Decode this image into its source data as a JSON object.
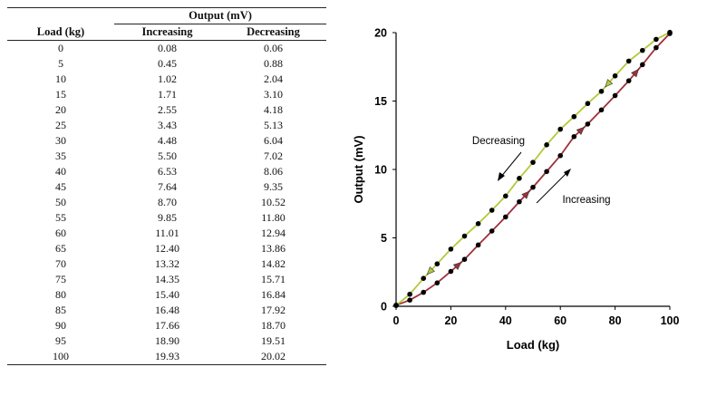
{
  "table": {
    "group_header": "Output (mV)",
    "headers": [
      "Load (kg)",
      "Increasing",
      "Decreasing"
    ],
    "rows": [
      [
        "0",
        "0.08",
        "0.06"
      ],
      [
        "5",
        "0.45",
        "0.88"
      ],
      [
        "10",
        "1.02",
        "2.04"
      ],
      [
        "15",
        "1.71",
        "3.10"
      ],
      [
        "20",
        "2.55",
        "4.18"
      ],
      [
        "25",
        "3.43",
        "5.13"
      ],
      [
        "30",
        "4.48",
        "6.04"
      ],
      [
        "35",
        "5.50",
        "7.02"
      ],
      [
        "40",
        "6.53",
        "8.06"
      ],
      [
        "45",
        "7.64",
        "9.35"
      ],
      [
        "50",
        "8.70",
        "10.52"
      ],
      [
        "55",
        "9.85",
        "11.80"
      ],
      [
        "60",
        "11.01",
        "12.94"
      ],
      [
        "65",
        "12.40",
        "13.86"
      ],
      [
        "70",
        "13.32",
        "14.82"
      ],
      [
        "75",
        "14.35",
        "15.71"
      ],
      [
        "80",
        "15.40",
        "16.84"
      ],
      [
        "85",
        "16.48",
        "17.92"
      ],
      [
        "90",
        "17.66",
        "18.70"
      ],
      [
        "95",
        "18.90",
        "19.51"
      ],
      [
        "100",
        "19.93",
        "20.02"
      ]
    ]
  },
  "chart_data": {
    "type": "line",
    "xlabel": "Load (kg)",
    "ylabel": "Output (mV)",
    "xlim": [
      0,
      100
    ],
    "ylim": [
      0,
      20
    ],
    "xticks": [
      0,
      20,
      40,
      60,
      80,
      100
    ],
    "yticks": [
      0,
      5,
      10,
      15,
      20
    ],
    "grid": false,
    "x": [
      0,
      5,
      10,
      15,
      20,
      25,
      30,
      35,
      40,
      45,
      50,
      55,
      60,
      65,
      70,
      75,
      80,
      85,
      90,
      95,
      100
    ],
    "series": [
      {
        "name": "Increasing",
        "color": "#a0303a",
        "values": [
          0.08,
          0.45,
          1.02,
          1.71,
          2.55,
          3.43,
          4.48,
          5.5,
          6.53,
          7.64,
          8.7,
          9.85,
          11.01,
          12.4,
          13.32,
          14.35,
          15.4,
          16.48,
          17.66,
          18.9,
          19.93
        ],
        "arrow_x": [
          20,
          45,
          65,
          85
        ]
      },
      {
        "name": "Decreasing",
        "color": "#b5c83a",
        "values": [
          0.06,
          0.88,
          2.04,
          3.1,
          4.18,
          5.13,
          6.04,
          7.02,
          8.06,
          9.35,
          10.52,
          11.8,
          12.94,
          13.86,
          14.82,
          15.71,
          16.84,
          17.92,
          18.7,
          19.51,
          20.02
        ],
        "arrow_x": [
          80,
          62,
          43,
          15
        ]
      }
    ],
    "marker_color": "#000000",
    "annotations": [
      {
        "text": "Decreasing",
        "series": "Decreasing"
      },
      {
        "text": "Increasing",
        "series": "Increasing"
      }
    ]
  }
}
